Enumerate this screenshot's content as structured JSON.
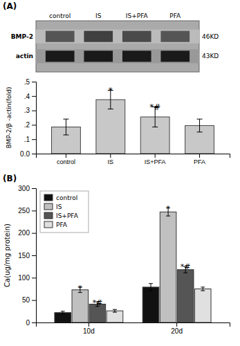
{
  "chart_data": [
    {
      "type": "blot",
      "title": "(A)",
      "categories": [
        "control",
        "IS",
        "IS+PFA",
        "PFA"
      ],
      "series": [
        {
          "name": "BMP-2",
          "colors": [
            "#555555",
            "#404040",
            "#4a4a4a",
            "#555555"
          ]
        },
        {
          "name": "actin",
          "colors": [
            "#1a1a1a",
            "#1a1a1a",
            "#1a1a1a",
            "#1a1a1a"
          ]
        }
      ],
      "annotations": [
        "46KD",
        "43KD"
      ]
    },
    {
      "type": "bar",
      "categories": [
        "control",
        "IS",
        "IS+PFA",
        "PFA"
      ],
      "values": [
        0.185,
        0.375,
        0.255,
        0.195
      ],
      "errors": [
        0.055,
        0.065,
        0.07,
        0.045
      ],
      "color": "#c8c8c8",
      "ylabel": "BMP-2/β -actin(fold)",
      "ylim": [
        0.0,
        0.5
      ],
      "yticks": [
        {
          "value": 0.0,
          "label": "0.0"
        },
        {
          "value": 0.1,
          "label": ".1"
        },
        {
          "value": 0.2,
          "label": ".2"
        },
        {
          "value": 0.3,
          "label": ".3"
        },
        {
          "value": 0.4,
          "label": ".4"
        },
        {
          "value": 0.5,
          "label": ".5"
        }
      ],
      "annotations": [
        {
          "text": "*",
          "x": "IS",
          "y": 0.447
        },
        {
          "text": "*#",
          "x": "IS+PFA",
          "y": 0.332
        }
      ]
    },
    {
      "type": "bar",
      "title": "(B)",
      "categories": [
        "10d",
        "20d"
      ],
      "series": [
        {
          "name": "control",
          "color": "#111111",
          "values": [
            22,
            79
          ],
          "errors": [
            3,
            8
          ]
        },
        {
          "name": "IS",
          "color": "#c0c0c0",
          "values": [
            73,
            247
          ],
          "errors": [
            6,
            9
          ]
        },
        {
          "name": "IS+PFA",
          "color": "#555555",
          "values": [
            41,
            118
          ],
          "errors": [
            5,
            7
          ]
        },
        {
          "name": "PFA",
          "color": "#e0e0e0",
          "values": [
            26,
            75
          ],
          "errors": [
            3,
            4
          ]
        }
      ],
      "ylabel": "Ca(ug/mg protein)",
      "ylim": [
        0,
        300
      ],
      "yticks": [
        0,
        50,
        100,
        150,
        200,
        250,
        300
      ],
      "legend": "upper left",
      "annotations": [
        {
          "text": "*",
          "x": "10d",
          "series": "IS",
          "y": 81
        },
        {
          "text": "*#",
          "x": "10d",
          "series": "IS+PFA",
          "y": 48
        },
        {
          "text": "*",
          "x": "20d",
          "series": "IS",
          "y": 259
        },
        {
          "text": "*#",
          "x": "20d",
          "series": "IS+PFA",
          "y": 128
        }
      ]
    }
  ]
}
